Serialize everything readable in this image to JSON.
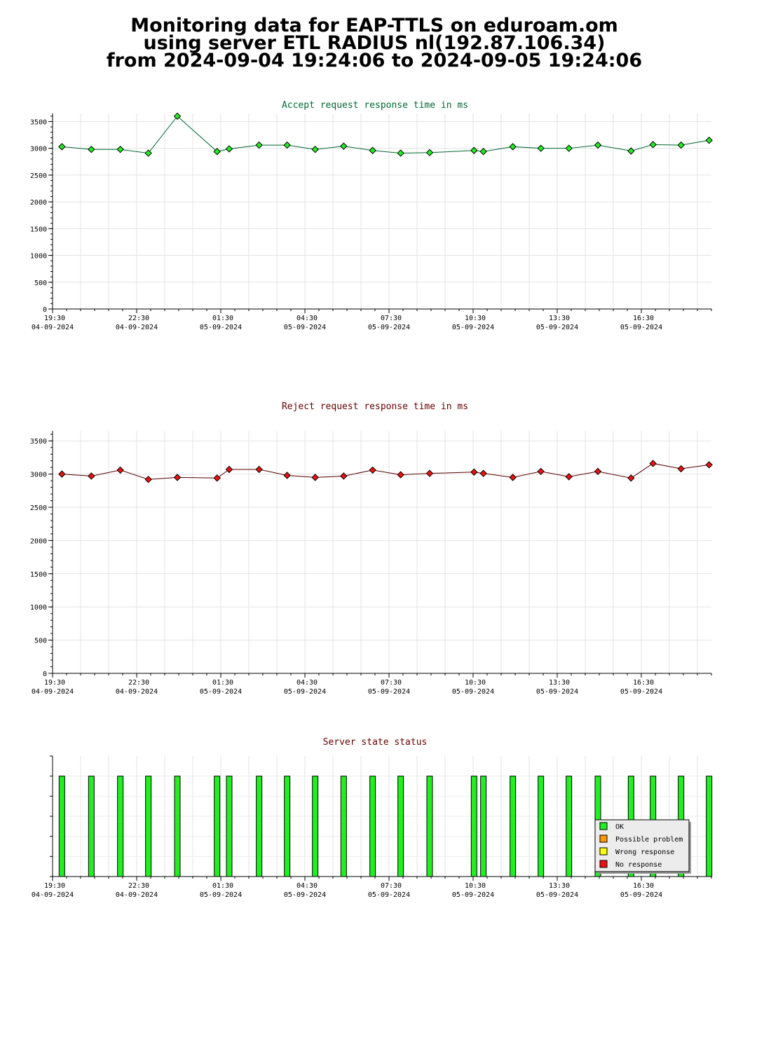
{
  "page": {
    "title_line1": "Monitoring data for EAP-TTLS on eduroam.om",
    "title_line2": "using server ETL RADIUS nl(192.87.106.34)",
    "title_line3": "from 2024-09-04 19:24:06 to 2024-09-05 19:24:06"
  },
  "colors": {
    "accept": "#22ee22",
    "accept_line": "#006633",
    "reject": "#ee1111",
    "reject_line": "#550000",
    "ok": "#22ee22",
    "possible_problem": "#ff9900",
    "wrong_response": "#ffff00",
    "no_response": "#ee1111"
  },
  "x_ticks": [
    {
      "time": "19:30",
      "date": "04-09-2024"
    },
    {
      "time": "22:30",
      "date": "04-09-2024"
    },
    {
      "time": "01:30",
      "date": "05-09-2024"
    },
    {
      "time": "04:30",
      "date": "05-09-2024"
    },
    {
      "time": "07:30",
      "date": "05-09-2024"
    },
    {
      "time": "10:30",
      "date": "05-09-2024"
    },
    {
      "time": "13:30",
      "date": "05-09-2024"
    },
    {
      "time": "16:30",
      "date": "05-09-2024"
    }
  ],
  "chart_data": [
    {
      "type": "line",
      "title": "Accept request response time in ms",
      "xlabel": "",
      "ylabel": "",
      "x_unit": "minutes since 19:30 04-09-2024",
      "xlim": [
        0,
        1410
      ],
      "ylim": [
        0,
        3650
      ],
      "yticks": [
        0,
        500,
        1000,
        1500,
        2000,
        2500,
        3000,
        3500
      ],
      "grid": true,
      "series": [
        {
          "x": [
            20,
            83,
            145,
            205,
            267,
            352,
            378,
            442,
            502,
            562,
            623,
            685,
            745,
            807,
            902,
            922,
            985,
            1045,
            1105,
            1167,
            1238,
            1285,
            1345,
            1405
          ],
          "y": [
            3030,
            2980,
            2980,
            2910,
            3600,
            2940,
            2990,
            3060,
            3060,
            2980,
            3040,
            2960,
            2910,
            2920,
            2960,
            2940,
            3030,
            3000,
            3000,
            3060,
            2950,
            3070,
            3060,
            3150
          ]
        }
      ]
    },
    {
      "type": "line",
      "title": "Reject request response time in ms",
      "xlabel": "",
      "ylabel": "",
      "x_unit": "minutes since 19:30 04-09-2024",
      "xlim": [
        0,
        1410
      ],
      "ylim": [
        0,
        3650
      ],
      "yticks": [
        0,
        500,
        1000,
        1500,
        2000,
        2500,
        3000,
        3500
      ],
      "grid": true,
      "series": [
        {
          "x": [
            20,
            83,
            145,
            205,
            267,
            352,
            378,
            442,
            502,
            562,
            623,
            685,
            745,
            807,
            902,
            922,
            985,
            1045,
            1105,
            1167,
            1238,
            1285,
            1345,
            1405
          ],
          "y": [
            3000,
            2970,
            3060,
            2920,
            2950,
            2940,
            3070,
            3070,
            2980,
            2950,
            2970,
            3060,
            2990,
            3010,
            3030,
            3010,
            2950,
            3040,
            2960,
            3040,
            2940,
            3160,
            3080,
            3140
          ]
        }
      ]
    },
    {
      "type": "bar",
      "title": "Server state status",
      "xlabel": "",
      "ylabel": "",
      "x_unit": "minutes since 19:30 04-09-2024",
      "xlim": [
        0,
        1410
      ],
      "x": [
        20,
        83,
        145,
        205,
        267,
        352,
        378,
        442,
        502,
        562,
        623,
        685,
        745,
        807,
        902,
        922,
        985,
        1045,
        1105,
        1167,
        1238,
        1285,
        1345,
        1405
      ],
      "status": [
        "OK",
        "OK",
        "OK",
        "OK",
        "OK",
        "OK",
        "OK",
        "OK",
        "OK",
        "OK",
        "OK",
        "OK",
        "OK",
        "OK",
        "OK",
        "OK",
        "OK",
        "OK",
        "OK",
        "OK",
        "OK",
        "OK",
        "OK",
        "OK"
      ],
      "legend": [
        "OK",
        "Possible problem",
        "Wrong response",
        "No response"
      ],
      "legend_position": "bottom-right"
    }
  ]
}
